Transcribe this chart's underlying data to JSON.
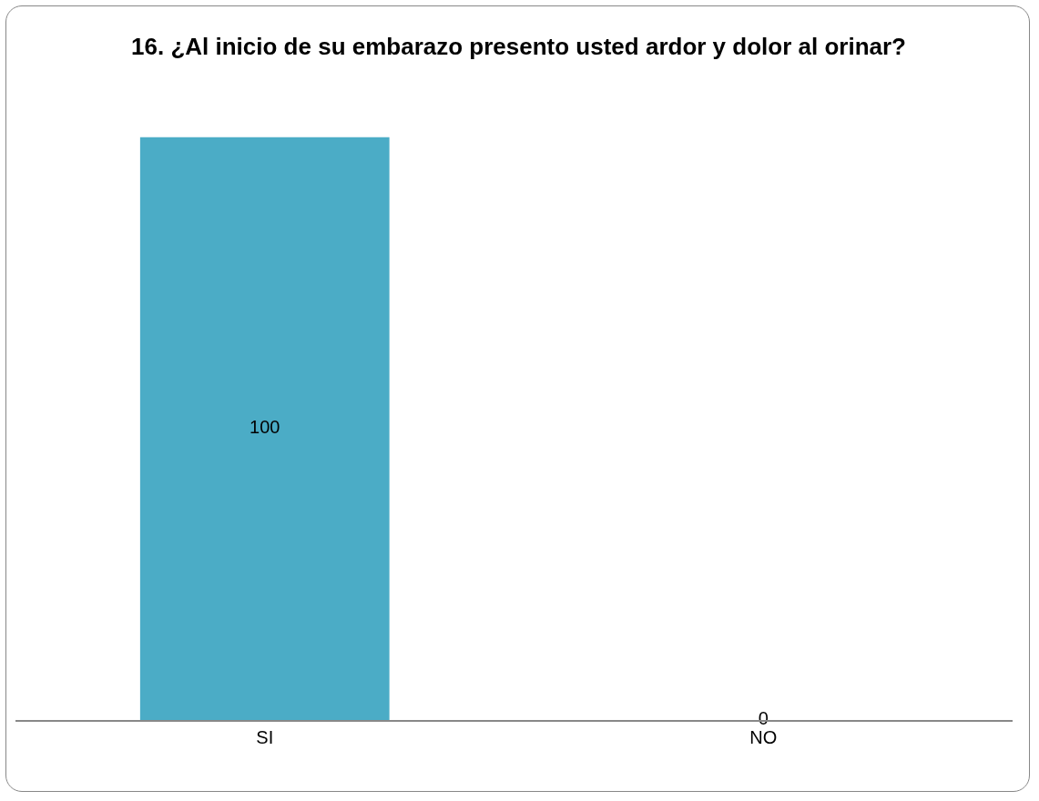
{
  "chart_data": {
    "type": "bar",
    "title": "16. ¿Al inicio de su embarazo presento usted ardor y dolor al orinar?",
    "categories": [
      "SI",
      "NO"
    ],
    "values": [
      100,
      0
    ],
    "color": "#4bacc6",
    "data_labels": true
  }
}
